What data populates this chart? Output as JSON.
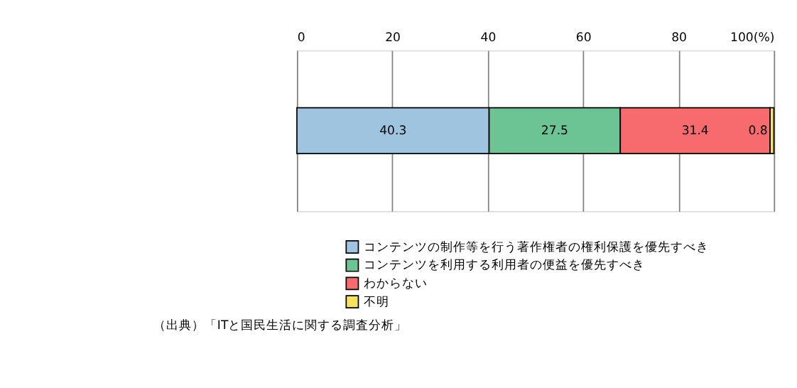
{
  "chart_data": {
    "type": "bar",
    "orientation": "horizontal",
    "stacked": true,
    "categories": [
      null
    ],
    "series": [
      {
        "name": "コンテンツの制作等を行う著作権者の権利保護を優先すべき",
        "color": "#9ec4e0",
        "values": [
          40.3
        ]
      },
      {
        "name": "コンテンツを利用する利用者の便益を優先すべき",
        "color": "#6cc494",
        "values": [
          27.5
        ]
      },
      {
        "name": "わからない",
        "color": "#f76a6e",
        "values": [
          31.4
        ]
      },
      {
        "name": "不明",
        "color": "#f5e35a",
        "values": [
          0.8
        ]
      }
    ],
    "xlim": [
      0,
      100
    ],
    "xticks": [
      0,
      20,
      40,
      60,
      80,
      {
        "value": 100,
        "label": "100(%)"
      }
    ],
    "grid": "x",
    "legend": "bottom",
    "data_labels": true,
    "annotations": [
      "（出典）「ITと国民生活に関する調査分析」"
    ]
  }
}
